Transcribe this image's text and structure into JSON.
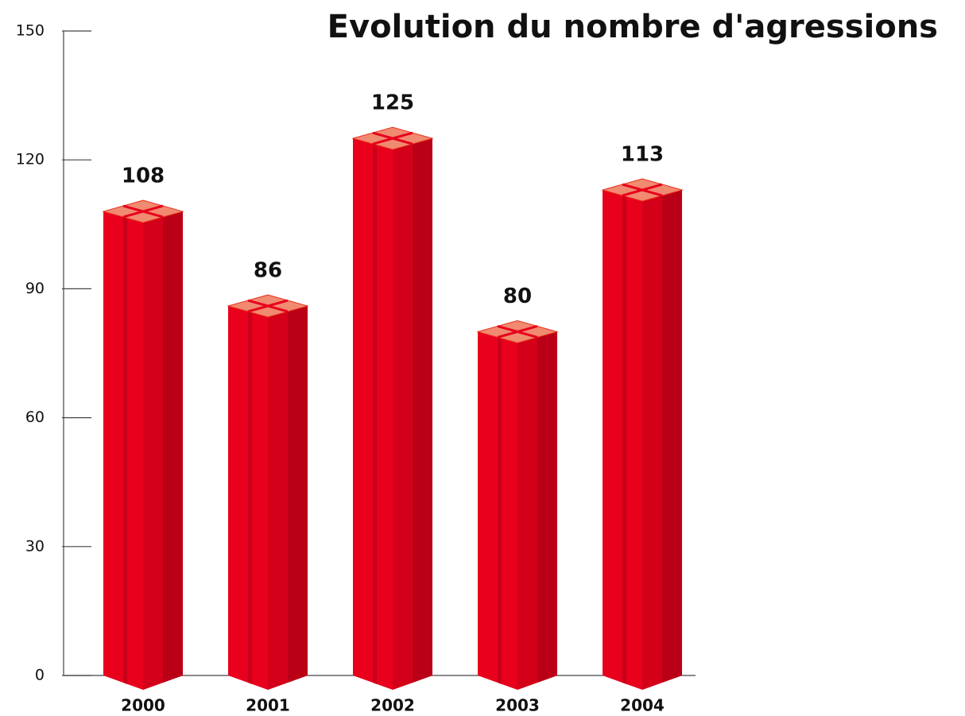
{
  "chart_data": {
    "type": "bar",
    "title": "Evolution du nombre d'agressions",
    "categories": [
      "2000",
      "2001",
      "2002",
      "2003",
      "2004"
    ],
    "values": [
      108,
      86,
      125,
      80,
      113
    ],
    "color": "#e8001c",
    "ylim": [
      0,
      150
    ],
    "yticks": [
      0,
      30,
      60,
      90,
      120,
      150
    ],
    "grid": false
  }
}
